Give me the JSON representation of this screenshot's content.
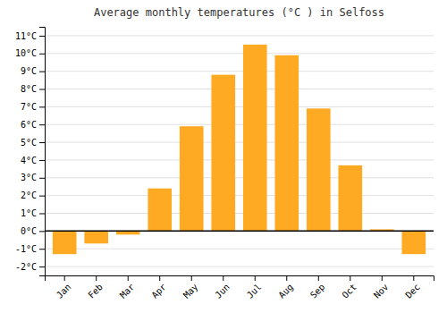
{
  "chart_data": {
    "type": "bar",
    "title": "Average monthly temperatures (°C ) in Selfoss",
    "categories": [
      "Jan",
      "Feb",
      "Mar",
      "Apr",
      "May",
      "Jun",
      "Jul",
      "Aug",
      "Sep",
      "Oct",
      "Nov",
      "Dec"
    ],
    "values": [
      -1.3,
      -0.7,
      -0.2,
      2.4,
      5.9,
      8.8,
      10.5,
      9.9,
      6.9,
      3.7,
      0.1,
      -1.3
    ],
    "color": "#FFAA22",
    "ylim": [
      -2.5,
      11.5
    ],
    "yticks": [
      {
        "value": -2,
        "label": "-2°C"
      },
      {
        "value": -1,
        "label": "-1°C"
      },
      {
        "value": 0,
        "label": "0°C"
      },
      {
        "value": 1,
        "label": "1°C"
      },
      {
        "value": 2,
        "label": "2°C"
      },
      {
        "value": 3,
        "label": "3°C"
      },
      {
        "value": 4,
        "label": "4°C"
      },
      {
        "value": 5,
        "label": "5°C"
      },
      {
        "value": 6,
        "label": "6°C"
      },
      {
        "value": 7,
        "label": "7°C"
      },
      {
        "value": 8,
        "label": "8°C"
      },
      {
        "value": 9,
        "label": "9°C"
      },
      {
        "value": 10,
        "label": "10°C"
      },
      {
        "value": 11,
        "label": "11°C"
      }
    ],
    "grid": true
  }
}
